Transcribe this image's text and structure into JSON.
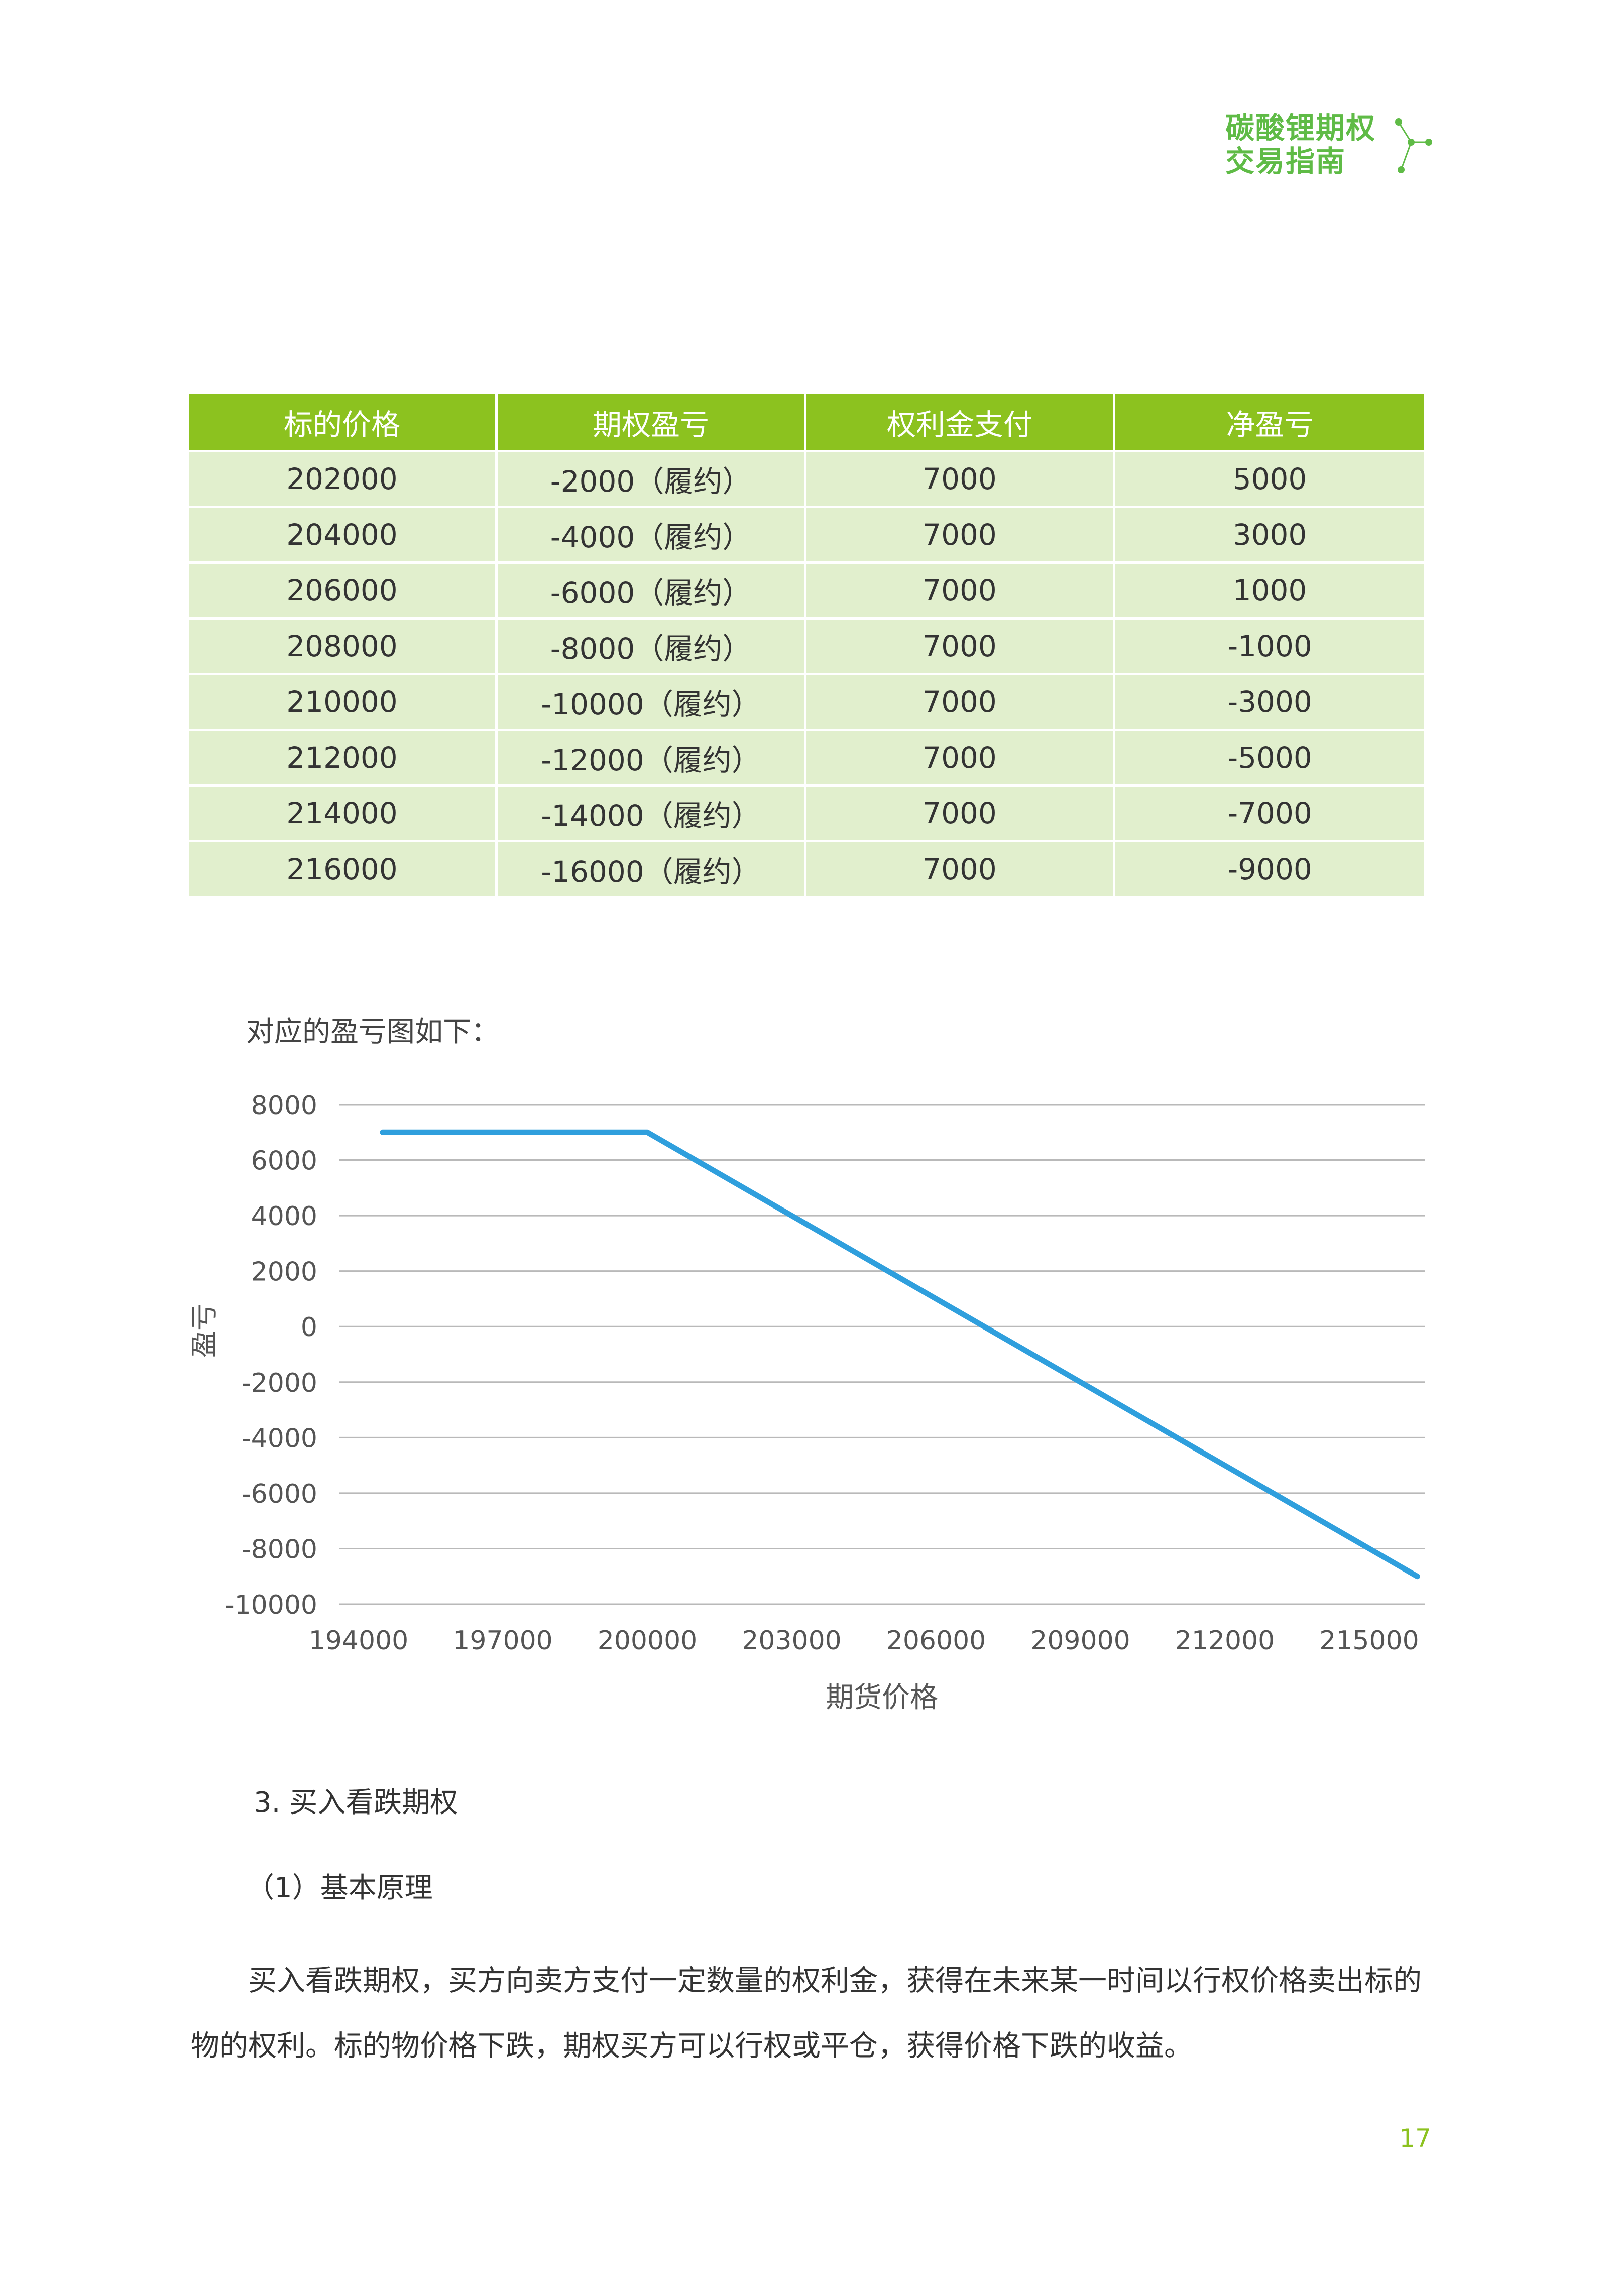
{
  "header": {
    "title_line1": "碳酸锂期权",
    "title_line2": "交易指南"
  },
  "table": {
    "headers": [
      "标的价格",
      "期权盈亏",
      "权利金支付",
      "净盈亏"
    ],
    "rows": [
      [
        "202000",
        "-2000（履约）",
        "7000",
        "5000"
      ],
      [
        "204000",
        "-4000（履约）",
        "7000",
        "3000"
      ],
      [
        "206000",
        "-6000（履约）",
        "7000",
        "1000"
      ],
      [
        "208000",
        "-8000（履约）",
        "7000",
        "-1000"
      ],
      [
        "210000",
        "-10000（履约）",
        "7000",
        "-3000"
      ],
      [
        "212000",
        "-12000（履约）",
        "7000",
        "-5000"
      ],
      [
        "214000",
        "-14000（履约）",
        "7000",
        "-7000"
      ],
      [
        "216000",
        "-16000（履约）",
        "7000",
        "-9000"
      ]
    ]
  },
  "chart_intro": "对应的盈亏图如下：",
  "chart_data": {
    "type": "line",
    "xlabel": "期货价格",
    "ylabel": "盈亏",
    "xlim": [
      194000,
      215000
    ],
    "ylim": [
      -10000,
      8000
    ],
    "x_ticks": [
      "194000",
      "197000",
      "200000",
      "203000",
      "206000",
      "209000",
      "212000",
      "215000"
    ],
    "y_ticks": [
      "8000",
      "6000",
      "4000",
      "2000",
      "0",
      "-2000",
      "-4000",
      "-6000",
      "-8000",
      "-10000"
    ],
    "grid": true,
    "color": "#2f9fdd",
    "series": [
      {
        "x": [
          194500,
          200000,
          216000
        ],
        "y": [
          7000,
          7000,
          -9000
        ]
      }
    ]
  },
  "section_title": "3. 买入看跌期权",
  "subsection_title": "（1）基本原理",
  "paragraph": "买入看跌期权，买方向卖方支付一定数量的权利金，获得在未来某一时间以行权价格卖出标的物的权利。标的物价格下跌，期权买方可以行权或平仓，获得价格下跌的收益。",
  "page_number": "17"
}
